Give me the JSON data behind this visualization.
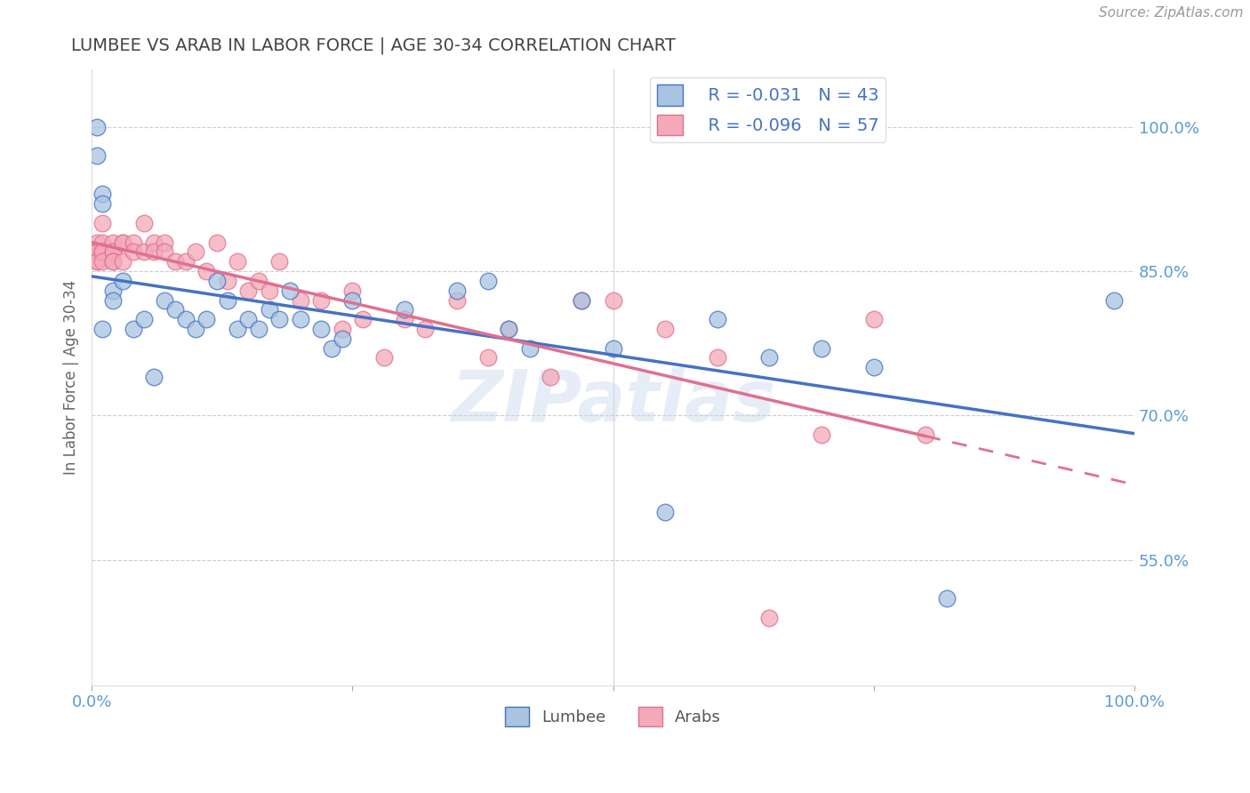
{
  "title": "LUMBEE VS ARAB IN LABOR FORCE | AGE 30-34 CORRELATION CHART",
  "source": "Source: ZipAtlas.com",
  "ylabel": "In Labor Force | Age 30-34",
  "xlim": [
    0.0,
    1.0
  ],
  "ylim": [
    0.42,
    1.06
  ],
  "yticks": [
    0.55,
    0.7,
    0.85,
    1.0
  ],
  "ytick_labels": [
    "55.0%",
    "70.0%",
    "85.0%",
    "100.0%"
  ],
  "xticks": [
    0.0,
    0.25,
    0.5,
    0.75,
    1.0
  ],
  "xtick_labels": [
    "0.0%",
    "",
    "",
    "",
    "100.0%"
  ],
  "lumbee_R": -0.031,
  "lumbee_N": 43,
  "arab_R": -0.096,
  "arab_N": 57,
  "lumbee_color": "#a8c4e0",
  "arab_color": "#f4a8b8",
  "lumbee_line_color": "#4472c4",
  "arab_line_color": "#e07090",
  "watermark": "ZIPatlas",
  "lumbee_x": [
    0.005,
    0.005,
    0.01,
    0.01,
    0.01,
    0.02,
    0.02,
    0.03,
    0.04,
    0.05,
    0.06,
    0.07,
    0.08,
    0.09,
    0.1,
    0.11,
    0.12,
    0.13,
    0.14,
    0.15,
    0.16,
    0.17,
    0.18,
    0.19,
    0.2,
    0.22,
    0.23,
    0.24,
    0.25,
    0.3,
    0.35,
    0.38,
    0.4,
    0.42,
    0.47,
    0.5,
    0.55,
    0.6,
    0.65,
    0.7,
    0.75,
    0.82,
    0.98
  ],
  "lumbee_y": [
    1.0,
    0.97,
    0.93,
    0.92,
    0.79,
    0.83,
    0.82,
    0.84,
    0.79,
    0.8,
    0.74,
    0.82,
    0.81,
    0.8,
    0.79,
    0.8,
    0.84,
    0.82,
    0.79,
    0.8,
    0.79,
    0.81,
    0.8,
    0.83,
    0.8,
    0.79,
    0.77,
    0.78,
    0.82,
    0.81,
    0.83,
    0.84,
    0.79,
    0.77,
    0.82,
    0.77,
    0.6,
    0.8,
    0.76,
    0.77,
    0.75,
    0.51,
    0.82
  ],
  "arab_x": [
    0.005,
    0.005,
    0.005,
    0.005,
    0.005,
    0.01,
    0.01,
    0.01,
    0.01,
    0.01,
    0.02,
    0.02,
    0.02,
    0.02,
    0.02,
    0.03,
    0.03,
    0.03,
    0.04,
    0.04,
    0.05,
    0.05,
    0.06,
    0.06,
    0.07,
    0.07,
    0.08,
    0.09,
    0.1,
    0.11,
    0.12,
    0.13,
    0.14,
    0.15,
    0.16,
    0.17,
    0.18,
    0.2,
    0.22,
    0.24,
    0.25,
    0.26,
    0.28,
    0.3,
    0.32,
    0.35,
    0.38,
    0.4,
    0.44,
    0.47,
    0.5,
    0.55,
    0.6,
    0.65,
    0.7,
    0.75,
    0.8
  ],
  "arab_y": [
    0.88,
    0.87,
    0.87,
    0.86,
    0.86,
    0.9,
    0.88,
    0.87,
    0.87,
    0.86,
    0.88,
    0.87,
    0.87,
    0.86,
    0.86,
    0.88,
    0.88,
    0.86,
    0.88,
    0.87,
    0.9,
    0.87,
    0.88,
    0.87,
    0.88,
    0.87,
    0.86,
    0.86,
    0.87,
    0.85,
    0.88,
    0.84,
    0.86,
    0.83,
    0.84,
    0.83,
    0.86,
    0.82,
    0.82,
    0.79,
    0.83,
    0.8,
    0.76,
    0.8,
    0.79,
    0.82,
    0.76,
    0.79,
    0.74,
    0.82,
    0.82,
    0.79,
    0.76,
    0.49,
    0.68,
    0.8,
    0.68
  ],
  "background_color": "#ffffff",
  "grid_color": "#cccccc",
  "title_color": "#444444",
  "axis_color": "#5b9bd5"
}
